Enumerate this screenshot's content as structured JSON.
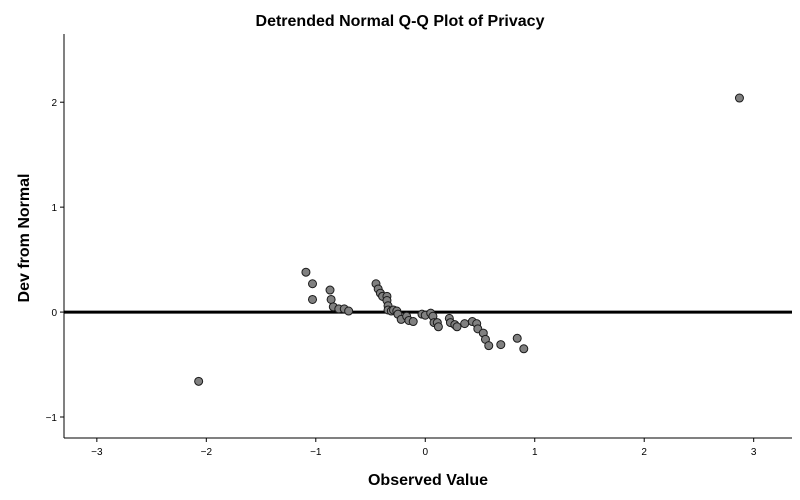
{
  "chart_data": {
    "type": "scatter",
    "title": "Detrended Normal Q-Q Plot of Privacy",
    "xlabel": "Observed Value",
    "ylabel": "Dev from Normal",
    "xlim": [
      -3.3,
      3.35
    ],
    "ylim": [
      -1.2,
      2.65
    ],
    "xticks": [
      -3,
      -2,
      -1,
      0,
      1,
      2,
      3
    ],
    "yticks": [
      -1,
      0,
      1,
      2
    ],
    "reference_line": {
      "y": 0
    },
    "grid": false,
    "legend": "none",
    "colors": {
      "point_fill": "#808080",
      "point_stroke": "#1a1a1a",
      "line": "#000000"
    },
    "points": [
      {
        "x": -2.07,
        "y": -0.66
      },
      {
        "x": -1.09,
        "y": 0.38
      },
      {
        "x": -1.03,
        "y": 0.27
      },
      {
        "x": -1.03,
        "y": 0.12
      },
      {
        "x": -0.87,
        "y": 0.21
      },
      {
        "x": -0.86,
        "y": 0.12
      },
      {
        "x": -0.84,
        "y": 0.05
      },
      {
        "x": -0.79,
        "y": 0.03
      },
      {
        "x": -0.74,
        "y": 0.03
      },
      {
        "x": -0.7,
        "y": 0.01
      },
      {
        "x": -0.45,
        "y": 0.27
      },
      {
        "x": -0.43,
        "y": 0.22
      },
      {
        "x": -0.41,
        "y": 0.18
      },
      {
        "x": -0.39,
        "y": 0.15
      },
      {
        "x": -0.35,
        "y": 0.15
      },
      {
        "x": -0.35,
        "y": 0.11
      },
      {
        "x": -0.34,
        "y": 0.06
      },
      {
        "x": -0.34,
        "y": 0.02
      },
      {
        "x": -0.31,
        "y": 0.01
      },
      {
        "x": -0.29,
        "y": 0.02
      },
      {
        "x": -0.26,
        "y": 0.01
      },
      {
        "x": -0.25,
        "y": -0.02
      },
      {
        "x": -0.22,
        "y": -0.07
      },
      {
        "x": -0.17,
        "y": -0.04
      },
      {
        "x": -0.15,
        "y": -0.08
      },
      {
        "x": -0.11,
        "y": -0.09
      },
      {
        "x": -0.03,
        "y": -0.02
      },
      {
        "x": 0.0,
        "y": -0.03
      },
      {
        "x": 0.05,
        "y": -0.01
      },
      {
        "x": 0.07,
        "y": -0.04
      },
      {
        "x": 0.08,
        "y": -0.1
      },
      {
        "x": 0.11,
        "y": -0.1
      },
      {
        "x": 0.12,
        "y": -0.14
      },
      {
        "x": 0.22,
        "y": -0.06
      },
      {
        "x": 0.23,
        "y": -0.1
      },
      {
        "x": 0.27,
        "y": -0.12
      },
      {
        "x": 0.29,
        "y": -0.14
      },
      {
        "x": 0.36,
        "y": -0.11
      },
      {
        "x": 0.43,
        "y": -0.09
      },
      {
        "x": 0.47,
        "y": -0.11
      },
      {
        "x": 0.48,
        "y": -0.16
      },
      {
        "x": 0.53,
        "y": -0.2
      },
      {
        "x": 0.55,
        "y": -0.26
      },
      {
        "x": 0.58,
        "y": -0.32
      },
      {
        "x": 0.69,
        "y": -0.31
      },
      {
        "x": 0.84,
        "y": -0.25
      },
      {
        "x": 0.9,
        "y": -0.35
      },
      {
        "x": 2.87,
        "y": 2.04
      }
    ]
  }
}
